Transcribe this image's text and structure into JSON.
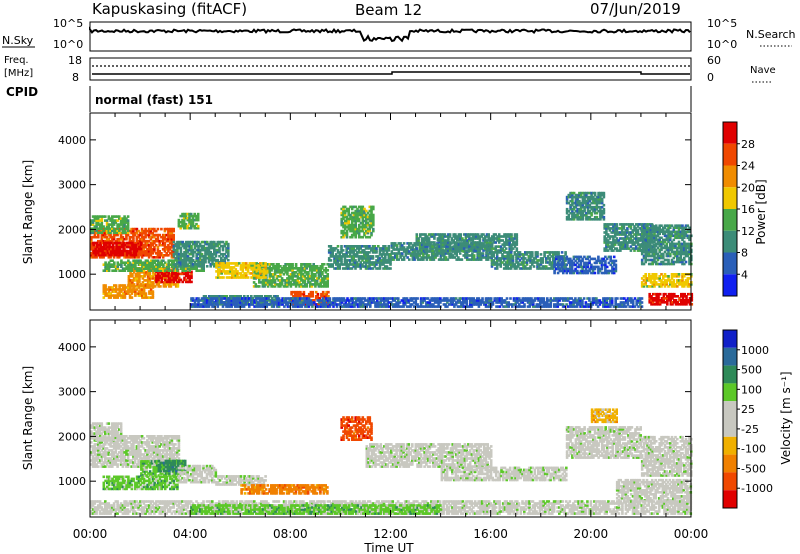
{
  "header": {
    "station": "Kapuskasing (fitACF)",
    "beam": "Beam 12",
    "date": "07/Jun/2019"
  },
  "status_panels": {
    "nsky_label": "N.Sky",
    "nsky_ticks": [
      "10^5",
      "10^0"
    ],
    "nsearch_label": "N.Search",
    "nsearch_ticks": [
      "10^5",
      "10^0"
    ],
    "freq_label_1": "Freq.",
    "freq_label_2": "[MHz]",
    "freq_ticks": [
      "18",
      "8"
    ],
    "nave_label": "Nave",
    "nave_ticks": [
      "60",
      "0"
    ],
    "cpid_label": "CPID",
    "cpid_text": "normal (fast) 151"
  },
  "colors": {
    "power_scale": [
      "#1020f0",
      "#2a5fb8",
      "#3c8c78",
      "#48a848",
      "#f0c800",
      "#f08c00",
      "#f04800",
      "#e00000"
    ],
    "velocity_scale": [
      "#1020c8",
      "#2a6a9a",
      "#2e8a58",
      "#5cc828",
      "#c8c8c0",
      "#c8c8c0",
      "#f0b000",
      "#f08000",
      "#f04800",
      "#e00000"
    ]
  },
  "chart_data": [
    {
      "type": "heatmap",
      "name": "power",
      "ylabel": "Slant Range [km]",
      "ylim": [
        200,
        4600
      ],
      "yticks": [
        "1000",
        "2000",
        "3000",
        "4000"
      ],
      "xticks": [
        "00:00",
        "04:00",
        "08:00",
        "12:00",
        "16:00",
        "20:00",
        "00:00"
      ],
      "colorbar_label": "Power [dB]",
      "colorbar_ticks": [
        "4",
        "8",
        "12",
        "16",
        "20",
        "24",
        "28"
      ],
      "regions": [
        {
          "t0": 0.0,
          "t1": 3.3,
          "r0": 1350,
          "r1": 2000,
          "level": 6
        },
        {
          "t0": 0.1,
          "t1": 2.0,
          "r0": 1400,
          "r1": 1700,
          "level": 7
        },
        {
          "t0": 0.0,
          "t1": 1.5,
          "r0": 1900,
          "r1": 2300,
          "level": 3
        },
        {
          "t0": 1.5,
          "t1": 3.5,
          "r0": 700,
          "r1": 1150,
          "level": 5
        },
        {
          "t0": 2.6,
          "t1": 4.0,
          "r0": 800,
          "r1": 1050,
          "level": 7
        },
        {
          "t0": 0.5,
          "t1": 4.5,
          "r0": 1050,
          "r1": 1300,
          "level": 3
        },
        {
          "t0": 3.3,
          "t1": 5.5,
          "r0": 1150,
          "r1": 1700,
          "level": 2
        },
        {
          "t0": 3.5,
          "t1": 4.3,
          "r0": 2000,
          "r1": 2350,
          "level": 3
        },
        {
          "t0": 0.5,
          "t1": 2.5,
          "r0": 450,
          "r1": 750,
          "level": 5
        },
        {
          "t0": 4.5,
          "t1": 7.5,
          "r0": 300,
          "r1": 500,
          "level": 2
        },
        {
          "t0": 6.5,
          "t1": 9.5,
          "r0": 700,
          "r1": 1200,
          "level": 3
        },
        {
          "t0": 8.0,
          "t1": 9.5,
          "r0": 300,
          "r1": 600,
          "level": 6
        },
        {
          "t0": 9.5,
          "t1": 12.0,
          "r0": 1100,
          "r1": 1600,
          "level": 2
        },
        {
          "t0": 10.0,
          "t1": 11.3,
          "r0": 1800,
          "r1": 2500,
          "level": 3
        },
        {
          "t0": 12.0,
          "t1": 16.0,
          "r0": 1300,
          "r1": 1700,
          "level": 2
        },
        {
          "t0": 13.0,
          "t1": 17.0,
          "r0": 1500,
          "r1": 1900,
          "level": 2
        },
        {
          "t0": 16.0,
          "t1": 19.0,
          "r0": 1100,
          "r1": 1500,
          "level": 2
        },
        {
          "t0": 18.5,
          "t1": 21.0,
          "r0": 1000,
          "r1": 1400,
          "level": 1
        },
        {
          "t0": 19.0,
          "t1": 20.5,
          "r0": 2200,
          "r1": 2800,
          "level": 2
        },
        {
          "t0": 20.5,
          "t1": 22.5,
          "r0": 1500,
          "r1": 2100,
          "level": 2
        },
        {
          "t0": 22.0,
          "t1": 24.0,
          "r0": 1200,
          "r1": 2100,
          "level": 2
        },
        {
          "t0": 22.0,
          "t1": 24.0,
          "r0": 700,
          "r1": 1000,
          "level": 4
        },
        {
          "t0": 22.3,
          "t1": 24.0,
          "r0": 300,
          "r1": 550,
          "level": 7
        },
        {
          "t0": 4.0,
          "t1": 22.0,
          "r0": 250,
          "r1": 450,
          "level": 1
        },
        {
          "t0": 5.0,
          "t1": 7.0,
          "r0": 900,
          "r1": 1250,
          "level": 4
        }
      ]
    },
    {
      "type": "heatmap",
      "name": "velocity",
      "ylabel": "Slant Range [km]",
      "ylim": [
        200,
        4600
      ],
      "yticks": [
        "1000",
        "2000",
        "3000",
        "4000"
      ],
      "xticks": [
        "00:00",
        "04:00",
        "08:00",
        "12:00",
        "16:00",
        "20:00",
        "00:00"
      ],
      "xlabel": "Time UT",
      "colorbar_label": "Velocity [m s⁻¹]",
      "colorbar_ticks": [
        "1000",
        "500",
        "100",
        "25",
        "-25",
        "-100",
        "-500",
        "-1000"
      ],
      "regions": [
        {
          "t0": 0.0,
          "t1": 3.5,
          "r0": 1300,
          "r1": 2000,
          "level": 4
        },
        {
          "t0": 0.0,
          "t1": 1.2,
          "r0": 1900,
          "r1": 2300,
          "level": 4
        },
        {
          "t0": 2.0,
          "t1": 3.7,
          "r0": 1100,
          "r1": 1450,
          "level": 3
        },
        {
          "t0": 2.7,
          "t1": 3.8,
          "r0": 1200,
          "r1": 1450,
          "level": 2
        },
        {
          "t0": 0.5,
          "t1": 3.5,
          "r0": 800,
          "r1": 1100,
          "level": 3
        },
        {
          "t0": 3.5,
          "t1": 5.0,
          "r0": 950,
          "r1": 1350,
          "level": 4
        },
        {
          "t0": 5.0,
          "t1": 7.0,
          "r0": 900,
          "r1": 1100,
          "level": 4
        },
        {
          "t0": 6.0,
          "t1": 9.5,
          "r0": 700,
          "r1": 900,
          "level": 7
        },
        {
          "t0": 10.0,
          "t1": 11.2,
          "r0": 1900,
          "r1": 2400,
          "level": 8
        },
        {
          "t0": 11.0,
          "t1": 16.0,
          "r0": 1300,
          "r1": 1800,
          "level": 4
        },
        {
          "t0": 14.0,
          "t1": 19.0,
          "r0": 1000,
          "r1": 1300,
          "level": 4
        },
        {
          "t0": 19.0,
          "t1": 22.0,
          "r0": 1500,
          "r1": 2200,
          "level": 4
        },
        {
          "t0": 20.0,
          "t1": 21.0,
          "r0": 2300,
          "r1": 2600,
          "level": 6
        },
        {
          "t0": 22.0,
          "t1": 24.0,
          "r0": 1100,
          "r1": 2000,
          "level": 4
        },
        {
          "t0": 21.0,
          "t1": 24.0,
          "r0": 500,
          "r1": 1000,
          "level": 4
        },
        {
          "t0": 0.0,
          "t1": 24.0,
          "r0": 250,
          "r1": 550,
          "level": 4
        },
        {
          "t0": 4.0,
          "t1": 14.0,
          "r0": 250,
          "r1": 450,
          "level": 3
        }
      ]
    }
  ]
}
